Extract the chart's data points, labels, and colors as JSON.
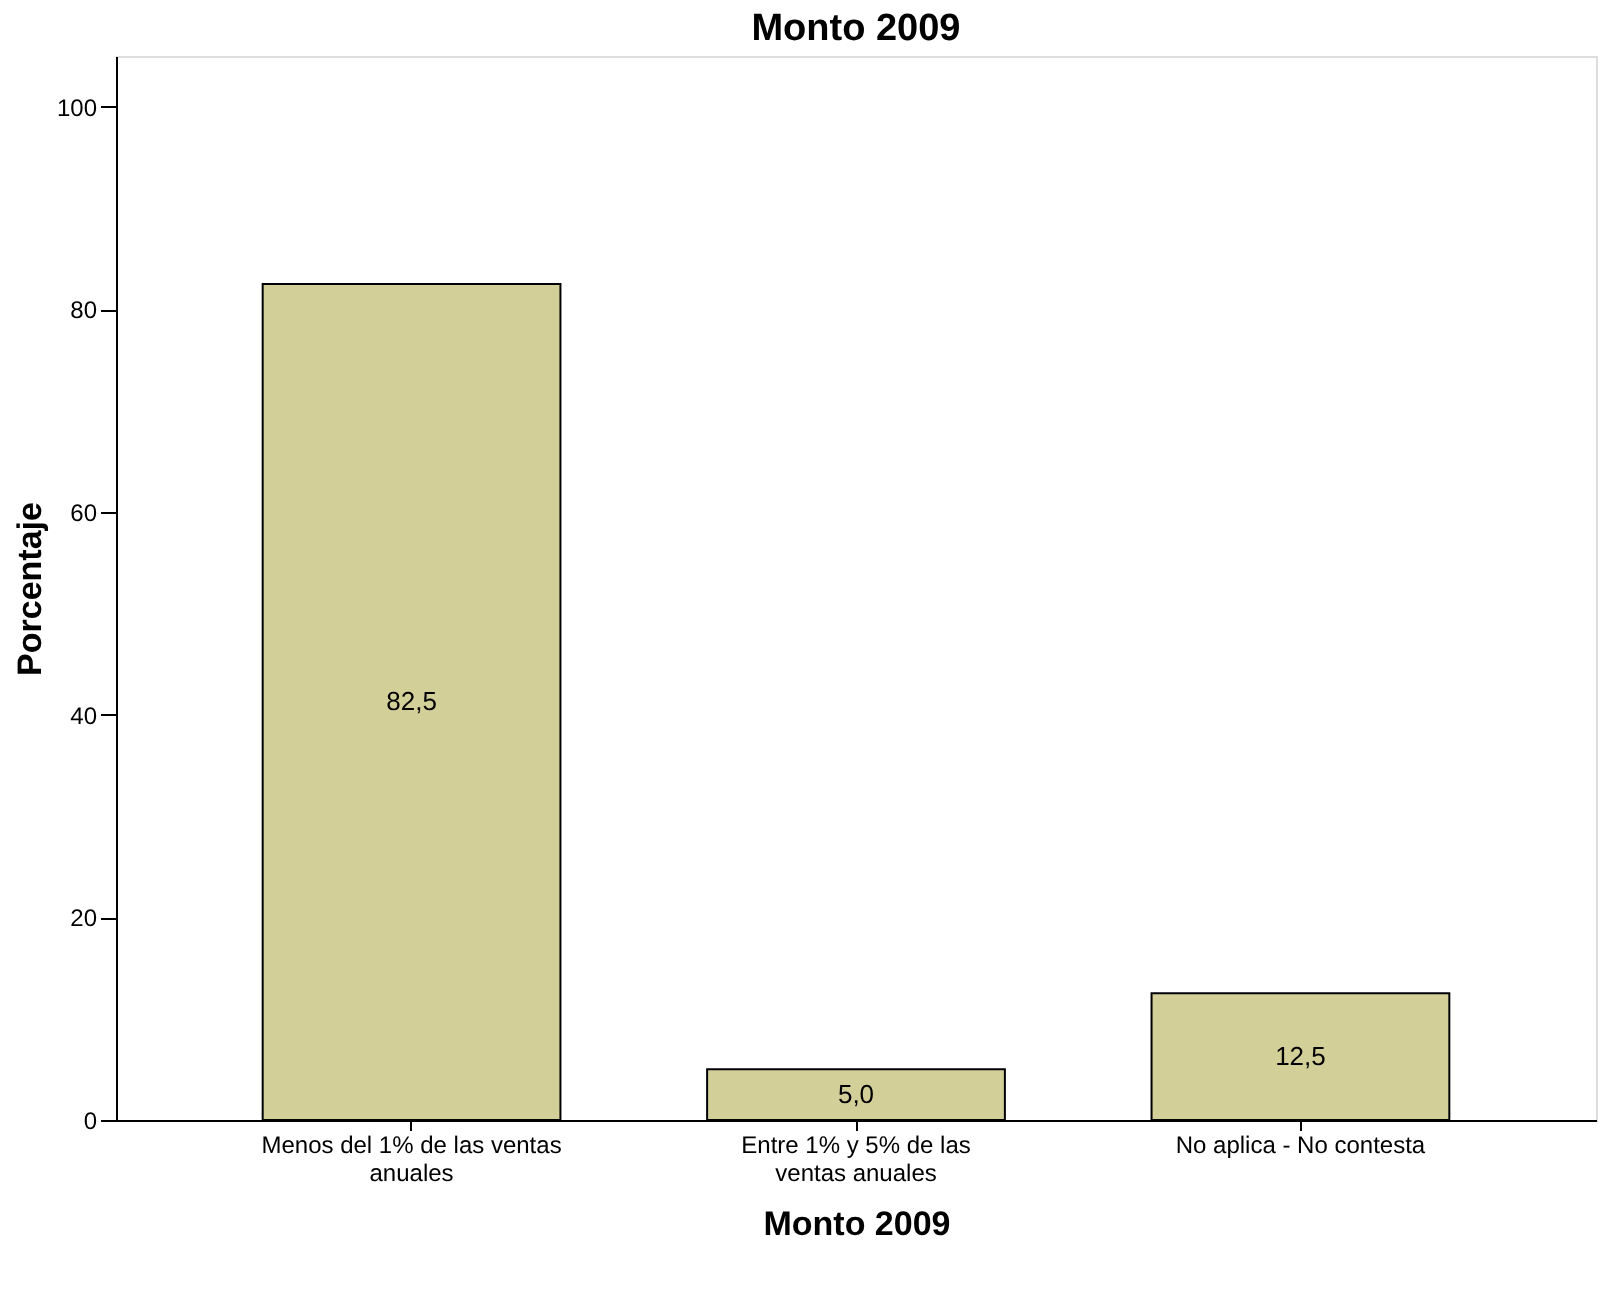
{
  "chart_data": {
    "type": "bar",
    "title": "Monto 2009",
    "xlabel": "Monto 2009",
    "ylabel": "Porcentaje",
    "categories": [
      "Menos del 1% de las ventas anuales",
      "Entre 1% y 5% de las ventas anuales",
      "No aplica - No contesta"
    ],
    "values": [
      82.5,
      5.0,
      12.5
    ],
    "value_labels": [
      "82,5",
      "5,0",
      "12,5"
    ],
    "color": "#d3cf98",
    "ylim": [
      0,
      105
    ],
    "yticks": [
      0,
      20,
      40,
      60,
      80,
      100
    ],
    "grid": false
  }
}
